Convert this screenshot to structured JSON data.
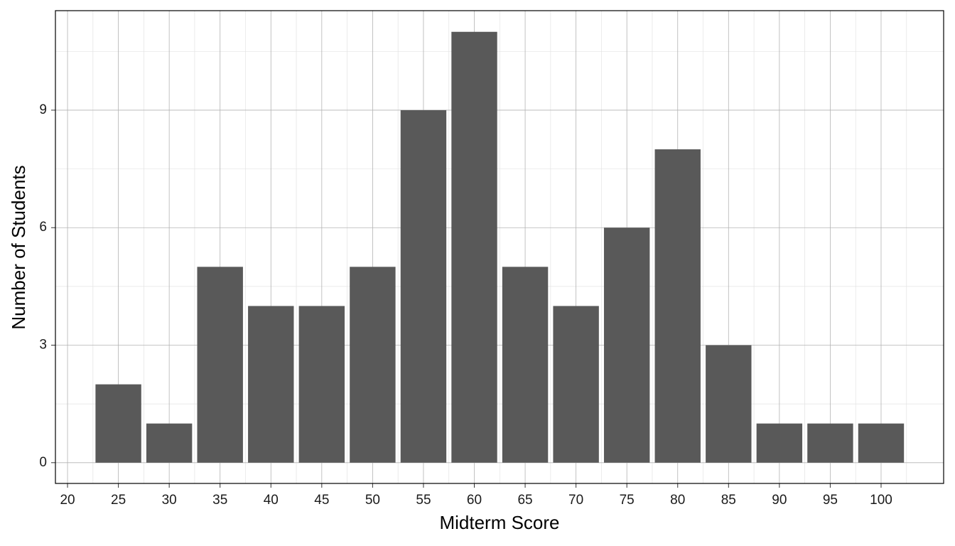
{
  "chart_data": {
    "type": "bar",
    "x": [
      25,
      30,
      35,
      40,
      45,
      50,
      55,
      60,
      65,
      70,
      75,
      80,
      85,
      90,
      95,
      100
    ],
    "values": [
      2,
      1,
      5,
      4,
      4,
      5,
      9,
      11,
      5,
      4,
      6,
      8,
      3,
      1,
      1,
      1
    ],
    "color": "#595959",
    "x_label": "Midterm Score",
    "y_label": "Number of Students",
    "xlim": [
      18.81,
      106.15
    ],
    "xticks": [
      20,
      25,
      30,
      35,
      40,
      45,
      50,
      55,
      60,
      65,
      70,
      75,
      80,
      85,
      90,
      95,
      100
    ],
    "ylim": [
      -0.53,
      11.54
    ],
    "yticks": [
      0,
      3,
      6,
      9
    ],
    "grid": true
  }
}
